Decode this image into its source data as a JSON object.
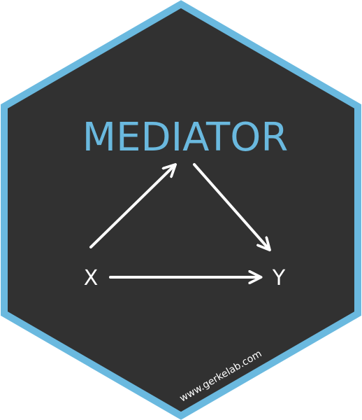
{
  "sticker": {
    "title": "MEDIATOR",
    "node_x": "X",
    "node_y": "Y",
    "url": "www.gerkelab.com"
  },
  "colors": {
    "hex_fill": "#313131",
    "hex_border": "#6ab9df",
    "title": "#6ab9df",
    "arrows": "#ffffff",
    "labels": "#ffffff"
  },
  "icons": {
    "diagram": "mediation-triangle-arrows"
  }
}
